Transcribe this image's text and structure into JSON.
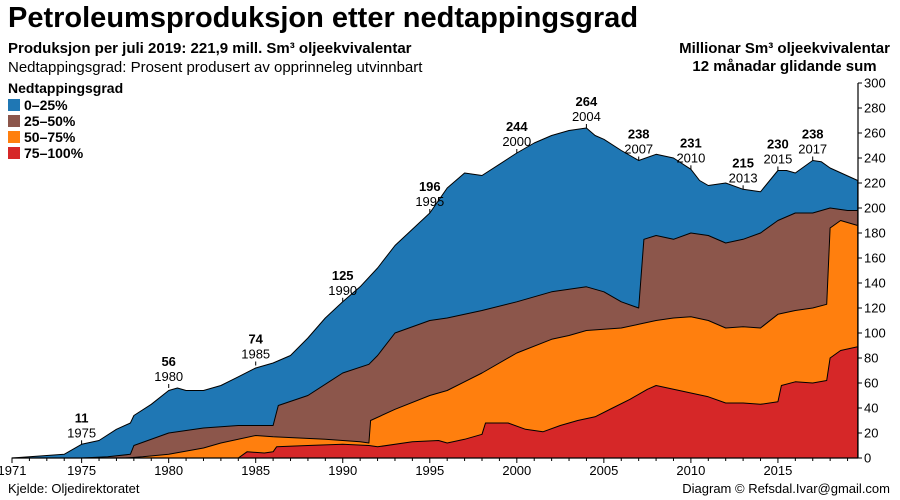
{
  "header": {
    "title": "Petroleumsproduksjon etter nedtappingsgrad",
    "subtitle": "Produksjon per juli 2019: 221,9 mill. Sm³ oljeekvivalentar",
    "subtitle2": "Nedtappingsgrad: Prosent produsert av opprinneleg utvinnbart",
    "unit_line1": "Millionar Sm³ oljeekvivalentar",
    "unit_line2": "12 månadar glidande sum"
  },
  "legend": {
    "title": "Nedtappingsgrad",
    "items": [
      {
        "label": "0–25%",
        "color": "#1f77b4"
      },
      {
        "label": "25–50%",
        "color": "#8c564b"
      },
      {
        "label": "50–75%",
        "color": "#ff7f0e"
      },
      {
        "label": "75–100%",
        "color": "#d62728"
      }
    ]
  },
  "footer": {
    "source": "Kjelde: Oljedirektoratet",
    "credit": "Diagram © Refsdal.Ivar@gmail.com"
  },
  "chart_data": {
    "type": "area",
    "stacked": true,
    "xlim": [
      1971,
      2019.6
    ],
    "ylim": [
      0,
      300
    ],
    "yticks": [
      0,
      20,
      40,
      60,
      80,
      100,
      120,
      140,
      160,
      180,
      200,
      220,
      240,
      260,
      280,
      300
    ],
    "xticks": [
      1971,
      1975,
      1980,
      1985,
      1990,
      1995,
      2000,
      2005,
      2010,
      2015
    ],
    "y_axis_side": "right",
    "annotations": [
      {
        "value": "11",
        "year": "1975",
        "x": 1975,
        "y": 11
      },
      {
        "value": "56",
        "year": "1980",
        "x": 1980,
        "y": 56
      },
      {
        "value": "74",
        "year": "1985",
        "x": 1985,
        "y": 74
      },
      {
        "value": "125",
        "year": "1990",
        "x": 1990,
        "y": 125
      },
      {
        "value": "196",
        "year": "1995",
        "x": 1995,
        "y": 196
      },
      {
        "value": "244",
        "year": "2000",
        "x": 2000,
        "y": 244
      },
      {
        "value": "264",
        "year": "2004",
        "x": 2004,
        "y": 264
      },
      {
        "value": "238",
        "year": "2007",
        "x": 2007,
        "y": 238
      },
      {
        "value": "231",
        "year": "2010",
        "x": 2010,
        "y": 231
      },
      {
        "value": "215",
        "year": "2013",
        "x": 2013,
        "y": 215
      },
      {
        "value": "230",
        "year": "2015",
        "x": 2015,
        "y": 230
      },
      {
        "value": "238",
        "year": "2017",
        "x": 2017,
        "y": 238
      }
    ],
    "series": [
      {
        "name": "75–100%",
        "color": "#d62728",
        "points": [
          [
            1971,
            0
          ],
          [
            1984,
            0
          ],
          [
            1984.5,
            5
          ],
          [
            1985.5,
            4
          ],
          [
            1986,
            5
          ],
          [
            1986.2,
            9
          ],
          [
            1988,
            10
          ],
          [
            1990,
            11
          ],
          [
            1991.5,
            10
          ],
          [
            1992,
            9
          ],
          [
            1994,
            13
          ],
          [
            1995.5,
            14
          ],
          [
            1996,
            12
          ],
          [
            1997,
            15
          ],
          [
            1998,
            19
          ],
          [
            1998.2,
            28
          ],
          [
            1999.5,
            28
          ],
          [
            2000.5,
            23
          ],
          [
            2001.5,
            21
          ],
          [
            2002.5,
            26
          ],
          [
            2003.5,
            30
          ],
          [
            2004.5,
            33
          ],
          [
            2005.5,
            40
          ],
          [
            2006.5,
            47
          ],
          [
            2007.5,
            55
          ],
          [
            2008,
            58
          ],
          [
            2009,
            55
          ],
          [
            2010,
            52
          ],
          [
            2011,
            49
          ],
          [
            2012,
            44
          ],
          [
            2013,
            44
          ],
          [
            2014,
            43
          ],
          [
            2015,
            45
          ],
          [
            2015.2,
            58
          ],
          [
            2016,
            61
          ],
          [
            2017,
            60
          ],
          [
            2017.8,
            62
          ],
          [
            2018,
            80
          ],
          [
            2018.6,
            86
          ],
          [
            2019.58,
            89
          ]
        ]
      },
      {
        "name": "50–75%",
        "color": "#ff7f0e",
        "points": [
          [
            1971,
            0
          ],
          [
            1977.5,
            0
          ],
          [
            1978.5,
            1
          ],
          [
            1980,
            3
          ],
          [
            1982,
            8
          ],
          [
            1983,
            12
          ],
          [
            1985,
            18
          ],
          [
            1986,
            17
          ],
          [
            1987.5,
            16
          ],
          [
            1989,
            15
          ],
          [
            1990,
            14
          ],
          [
            1991,
            13
          ],
          [
            1991.5,
            12
          ],
          [
            1991.6,
            30
          ],
          [
            1993,
            39
          ],
          [
            1995,
            50
          ],
          [
            1996,
            54
          ],
          [
            1998,
            68
          ],
          [
            2000,
            84
          ],
          [
            2002,
            95
          ],
          [
            2003,
            98
          ],
          [
            2004,
            102
          ],
          [
            2005,
            103
          ],
          [
            2006,
            104
          ],
          [
            2007,
            107
          ],
          [
            2008,
            110
          ],
          [
            2009,
            112
          ],
          [
            2010,
            113
          ],
          [
            2011,
            110
          ],
          [
            2012,
            104
          ],
          [
            2013,
            105
          ],
          [
            2014,
            104
          ],
          [
            2015,
            115
          ],
          [
            2016,
            118
          ],
          [
            2017,
            120
          ],
          [
            2017.8,
            123
          ],
          [
            2018,
            184
          ],
          [
            2018.6,
            190
          ],
          [
            2019.58,
            186
          ]
        ]
      },
      {
        "name": "25–50%",
        "color": "#8c564b",
        "points": [
          [
            1971,
            0
          ],
          [
            1975,
            0
          ],
          [
            1976.5,
            1
          ],
          [
            1977.8,
            3
          ],
          [
            1978,
            10
          ],
          [
            1980,
            20
          ],
          [
            1982,
            24
          ],
          [
            1984,
            26
          ],
          [
            1986,
            26
          ],
          [
            1986.3,
            42
          ],
          [
            1988,
            50
          ],
          [
            1990,
            68
          ],
          [
            1991.5,
            75
          ],
          [
            1992,
            82
          ],
          [
            1993,
            100
          ],
          [
            1995,
            110
          ],
          [
            1996,
            112
          ],
          [
            1998,
            118
          ],
          [
            2000,
            125
          ],
          [
            2002,
            133
          ],
          [
            2004,
            137
          ],
          [
            2005,
            133
          ],
          [
            2006,
            125
          ],
          [
            2007,
            120
          ],
          [
            2007.3,
            175
          ],
          [
            2008,
            178
          ],
          [
            2009,
            175
          ],
          [
            2010,
            180
          ],
          [
            2011,
            178
          ],
          [
            2012,
            172
          ],
          [
            2013,
            175
          ],
          [
            2014,
            180
          ],
          [
            2015,
            190
          ],
          [
            2016,
            196
          ],
          [
            2017,
            196
          ],
          [
            2018,
            200
          ],
          [
            2019,
            198
          ],
          [
            2019.58,
            198
          ]
        ]
      },
      {
        "name": "0–25%",
        "color": "#1f77b4",
        "points": [
          [
            1971,
            0
          ],
          [
            1972,
            1
          ],
          [
            1973,
            2
          ],
          [
            1974,
            3
          ],
          [
            1975,
            11
          ],
          [
            1976,
            14
          ],
          [
            1977,
            23
          ],
          [
            1977.8,
            28
          ],
          [
            1978,
            34
          ],
          [
            1979,
            43
          ],
          [
            1980,
            54
          ],
          [
            1980.5,
            56
          ],
          [
            1981,
            54
          ],
          [
            1982,
            54
          ],
          [
            1983,
            58
          ],
          [
            1984,
            65
          ],
          [
            1985,
            72
          ],
          [
            1986,
            76
          ],
          [
            1987,
            82
          ],
          [
            1988,
            96
          ],
          [
            1989,
            112
          ],
          [
            1990,
            125
          ],
          [
            1991,
            137
          ],
          [
            1992,
            152
          ],
          [
            1993,
            170
          ],
          [
            1994,
            183
          ],
          [
            1995,
            196
          ],
          [
            1996,
            216
          ],
          [
            1997,
            228
          ],
          [
            1998,
            226
          ],
          [
            1999,
            235
          ],
          [
            2000,
            244
          ],
          [
            2001,
            252
          ],
          [
            2002,
            258
          ],
          [
            2003,
            262
          ],
          [
            2004,
            264
          ],
          [
            2004.5,
            258
          ],
          [
            2005,
            255
          ],
          [
            2006,
            246
          ],
          [
            2007,
            238
          ],
          [
            2008,
            243
          ],
          [
            2009,
            240
          ],
          [
            2010,
            231
          ],
          [
            2010.5,
            222
          ],
          [
            2011,
            218
          ],
          [
            2012,
            220
          ],
          [
            2013,
            215
          ],
          [
            2014,
            213
          ],
          [
            2015,
            230
          ],
          [
            2015.5,
            230
          ],
          [
            2016,
            228
          ],
          [
            2017,
            238
          ],
          [
            2017.5,
            237
          ],
          [
            2018,
            232
          ],
          [
            2019.58,
            222
          ]
        ]
      }
    ]
  }
}
